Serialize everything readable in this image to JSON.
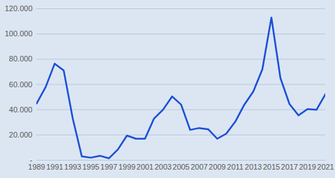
{
  "chart_data": {
    "type": "line",
    "x": [
      1989,
      1990,
      1991,
      1992,
      1993,
      1994,
      1995,
      1996,
      1997,
      1998,
      1999,
      2000,
      2001,
      2002,
      2003,
      2004,
      2005,
      2006,
      2007,
      2008,
      2009,
      2010,
      2011,
      2012,
      2013,
      2014,
      2015,
      2016,
      2017,
      2018,
      2019,
      2020,
      2021
    ],
    "values": [
      45000,
      58000,
      76500,
      71000,
      33000,
      3000,
      2000,
      3500,
      1500,
      8500,
      19500,
      17000,
      17000,
      33000,
      40000,
      50500,
      44000,
      24000,
      25500,
      24500,
      17000,
      21000,
      30500,
      44000,
      54500,
      72000,
      113000,
      65000,
      44500,
      35500,
      40500,
      40000,
      52500
    ],
    "color": "#1a4fd6",
    "xlim": [
      1989,
      2021
    ],
    "xticks": [
      1989,
      1991,
      1993,
      1995,
      1997,
      1999,
      2001,
      2003,
      2005,
      2007,
      2009,
      2011,
      2013,
      2015,
      2017,
      2019,
      2021
    ],
    "ylim": [
      0,
      120000
    ],
    "yticks": [
      {
        "value": 0,
        "label": "-"
      },
      {
        "value": 20000,
        "label": "20.000"
      },
      {
        "value": 40000,
        "label": "40.000"
      },
      {
        "value": 60000,
        "label": "60.000"
      },
      {
        "value": 80000,
        "label": "80.000"
      },
      {
        "value": 100000,
        "label": "100.000"
      },
      {
        "value": 120000,
        "label": "120.000"
      }
    ],
    "grid": true
  }
}
